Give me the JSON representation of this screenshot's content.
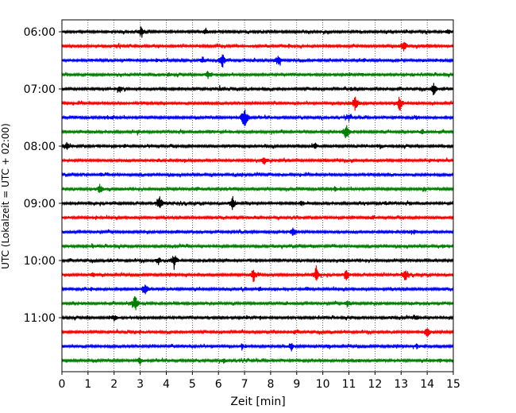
{
  "chart_data": {
    "type": "line",
    "title": "",
    "xlabel": "Zeit  [min]",
    "ylabel": "UTC (Lokalzeit = UTC + 02:00)",
    "xlim": [
      0,
      15
    ],
    "x_ticks": [
      "0",
      "1",
      "2",
      "3",
      "4",
      "5",
      "6",
      "7",
      "8",
      "9",
      "10",
      "11",
      "12",
      "13",
      "14",
      "15"
    ],
    "y_tick_labels": [
      "06:00",
      "07:00",
      "08:00",
      "09:00",
      "10:00",
      "11:00"
    ],
    "grid": "vertical dotted at each minute",
    "trace_interval_minutes": 15,
    "start_time": "06:00",
    "trace_count": 24,
    "colors": [
      "#000000",
      "#ff0000",
      "#0000ff",
      "#008000"
    ],
    "series": [
      {
        "start": "06:00",
        "color": "#000000",
        "events": [
          [
            3.05,
            9
          ],
          [
            5.5,
            3
          ],
          [
            13.2,
            2
          ],
          [
            14.8,
            3
          ]
        ]
      },
      {
        "start": "06:15",
        "color": "#ff0000",
        "events": [
          [
            13.1,
            9
          ],
          [
            2.1,
            2
          ],
          [
            8.7,
            2
          ]
        ]
      },
      {
        "start": "06:30",
        "color": "#0000ff",
        "events": [
          [
            6.15,
            10
          ],
          [
            8.3,
            8
          ],
          [
            5.4,
            5
          ],
          [
            3.6,
            2
          ],
          [
            11.6,
            2
          ]
        ]
      },
      {
        "start": "06:45",
        "color": "#008000",
        "events": [
          [
            5.6,
            5
          ],
          [
            4.1,
            2
          ],
          [
            11.5,
            2
          ],
          [
            13.4,
            2
          ]
        ]
      },
      {
        "start": "07:00",
        "color": "#000000",
        "events": [
          [
            14.25,
            9
          ],
          [
            2.2,
            4
          ],
          [
            11.1,
            2
          ],
          [
            6.1,
            2
          ]
        ]
      },
      {
        "start": "07:15",
        "color": "#ff0000",
        "events": [
          [
            11.25,
            12
          ],
          [
            12.95,
            11
          ],
          [
            5.5,
            3
          ],
          [
            2.4,
            2
          ]
        ]
      },
      {
        "start": "07:30",
        "color": "#0000ff",
        "events": [
          [
            7.0,
            20
          ],
          [
            11.0,
            4
          ],
          [
            1.9,
            2
          ],
          [
            13.6,
            2
          ]
        ]
      },
      {
        "start": "07:45",
        "color": "#008000",
        "events": [
          [
            10.9,
            12
          ],
          [
            13.8,
            3
          ],
          [
            5.7,
            2
          ],
          [
            2.9,
            2
          ]
        ]
      },
      {
        "start": "08:00",
        "color": "#000000",
        "events": [
          [
            0.2,
            4
          ],
          [
            9.7,
            4
          ],
          [
            12.2,
            3
          ],
          [
            2.4,
            2
          ]
        ]
      },
      {
        "start": "08:15",
        "color": "#ff0000",
        "events": [
          [
            7.75,
            6
          ],
          [
            3.7,
            2
          ],
          [
            10.1,
            2
          ],
          [
            14.1,
            2
          ]
        ]
      },
      {
        "start": "08:30",
        "color": "#0000ff",
        "events": [
          [
            1.5,
            2
          ],
          [
            6.9,
            2
          ],
          [
            12.8,
            2
          ]
        ]
      },
      {
        "start": "08:45",
        "color": "#008000",
        "events": [
          [
            1.45,
            7
          ],
          [
            5.2,
            2
          ],
          [
            10.5,
            2
          ],
          [
            13.9,
            2
          ]
        ]
      },
      {
        "start": "09:00",
        "color": "#000000",
        "events": [
          [
            3.75,
            10
          ],
          [
            6.55,
            9
          ],
          [
            9.2,
            4
          ],
          [
            12.4,
            2
          ]
        ]
      },
      {
        "start": "09:15",
        "color": "#ff0000",
        "events": [
          [
            1.3,
            2
          ],
          [
            7.4,
            2
          ],
          [
            11.9,
            2
          ]
        ]
      },
      {
        "start": "09:30",
        "color": "#0000ff",
        "events": [
          [
            8.85,
            5
          ],
          [
            4.4,
            2
          ],
          [
            13.5,
            2
          ]
        ]
      },
      {
        "start": "09:45",
        "color": "#008000",
        "events": [
          [
            1.2,
            2
          ],
          [
            9.6,
            2
          ],
          [
            14.6,
            2
          ]
        ]
      },
      {
        "start": "10:00",
        "color": "#000000",
        "events": [
          [
            4.3,
            11
          ],
          [
            3.7,
            6
          ],
          [
            10.8,
            2
          ],
          [
            1.9,
            2
          ]
        ]
      },
      {
        "start": "10:15",
        "color": "#ff0000",
        "events": [
          [
            7.35,
            10
          ],
          [
            9.75,
            12
          ],
          [
            10.9,
            8
          ],
          [
            13.15,
            7
          ],
          [
            1.2,
            3
          ]
        ]
      },
      {
        "start": "10:30",
        "color": "#0000ff",
        "events": [
          [
            3.2,
            11
          ],
          [
            7.6,
            3
          ],
          [
            9.4,
            3
          ],
          [
            1.1,
            2
          ]
        ]
      },
      {
        "start": "10:45",
        "color": "#008000",
        "events": [
          [
            2.8,
            12
          ],
          [
            10.95,
            5
          ],
          [
            8.6,
            2
          ],
          [
            13.4,
            2
          ]
        ]
      },
      {
        "start": "11:00",
        "color": "#000000",
        "events": [
          [
            2.0,
            4
          ],
          [
            7.6,
            2
          ],
          [
            13.6,
            3
          ],
          [
            12.6,
            2
          ]
        ]
      },
      {
        "start": "11:15",
        "color": "#ff0000",
        "events": [
          [
            14.0,
            7
          ],
          [
            8.9,
            3
          ],
          [
            3.0,
            2
          ]
        ]
      },
      {
        "start": "11:30",
        "color": "#0000ff",
        "events": [
          [
            8.8,
            5
          ],
          [
            6.9,
            3
          ],
          [
            13.6,
            3
          ],
          [
            10.2,
            2
          ]
        ]
      },
      {
        "start": "11:45",
        "color": "#008000",
        "events": [
          [
            3.0,
            5
          ],
          [
            6.2,
            3
          ],
          [
            11.4,
            2
          ],
          [
            14.5,
            2
          ]
        ]
      }
    ]
  }
}
